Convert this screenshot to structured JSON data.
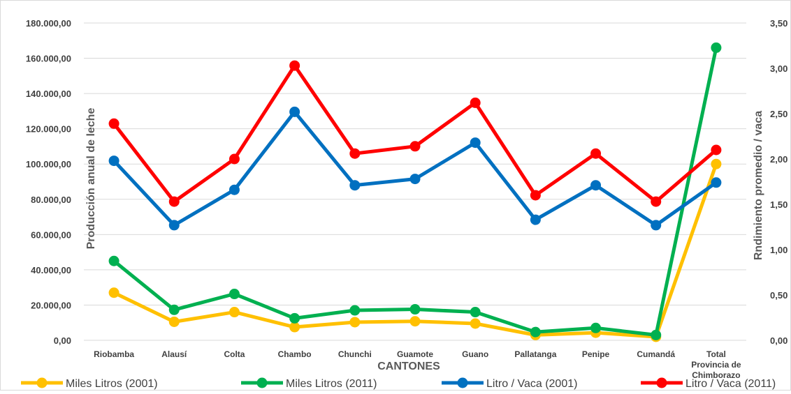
{
  "chart_data": {
    "type": "line",
    "title": "",
    "xlabel": "CANTONES",
    "ylabel": "Producción anual de leche",
    "y2label": "Rndimiento promedio / vaca",
    "categories": [
      "Riobamba",
      "Alausí",
      "Colta",
      "Chambo",
      "Chunchi",
      "Guamote",
      "Guano",
      "Pallatanga",
      "Penipe",
      "Cumandá",
      "Total Provincia de Chimborazo"
    ],
    "category_lines": [
      [
        "Riobamba"
      ],
      [
        "Alausí"
      ],
      [
        "Colta"
      ],
      [
        "Chambo"
      ],
      [
        "Chunchi"
      ],
      [
        "Guamote"
      ],
      [
        "Guano"
      ],
      [
        "Pallatanga"
      ],
      [
        "Penipe"
      ],
      [
        "Cumandá"
      ],
      [
        "Total",
        "Provincia de",
        "Chimborazo"
      ]
    ],
    "ylim": [
      0,
      180000
    ],
    "y2lim": [
      0,
      3.5
    ],
    "yticks": [
      "0,00",
      "20.000,00",
      "40.000,00",
      "60.000,00",
      "80.000,00",
      "100.000,00",
      "120.000,00",
      "140.000,00",
      "160.000,00",
      "180.000,00"
    ],
    "y2ticks": [
      "0,00",
      "0,50",
      "1,00",
      "1,50",
      "2,00",
      "2,50",
      "3,00",
      "3,50"
    ],
    "grid": true,
    "legend_position": "bottom",
    "series": [
      {
        "name": "Miles Litros (2001)",
        "axis": "left",
        "color": "#FFC000",
        "values": [
          27000,
          10500,
          16000,
          7500,
          10300,
          10800,
          9500,
          3000,
          4300,
          2000,
          100000
        ]
      },
      {
        "name": "Miles Litros (2011)",
        "axis": "left",
        "color": "#00B050",
        "values": [
          45000,
          17300,
          26300,
          12500,
          17000,
          17600,
          16000,
          4700,
          7000,
          3000,
          166000
        ]
      },
      {
        "name": "Litro / Vaca (2001)",
        "axis": "right",
        "color": "#0070C0",
        "values": [
          1.98,
          1.27,
          1.66,
          2.52,
          1.71,
          1.78,
          2.18,
          1.33,
          1.71,
          1.27,
          1.74
        ]
      },
      {
        "name": "Litro / Vaca (2011)",
        "axis": "right",
        "color": "#FF0000",
        "values": [
          2.39,
          1.53,
          2.0,
          3.03,
          2.06,
          2.14,
          2.62,
          1.6,
          2.06,
          1.53,
          2.1
        ]
      }
    ]
  }
}
